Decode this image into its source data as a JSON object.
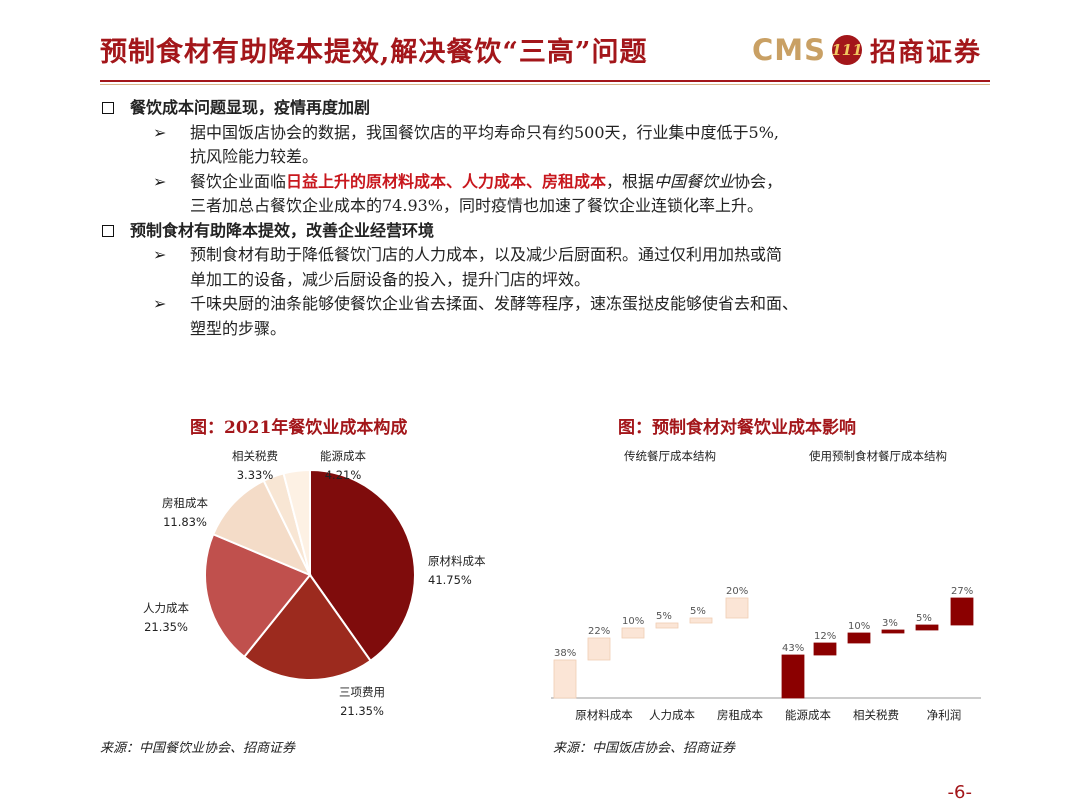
{
  "header": {
    "title": "预制食材有助降本提效,解决餐饮“三高”问题",
    "logo_text": "CMS",
    "logo_badge": "111",
    "logo_cn": "招商证券"
  },
  "sections": [
    {
      "heading": "餐饮成本问题显现，疫情再度加剧",
      "bullets": [
        {
          "line1": "据中国饭店协会的数据，我国餐饮店的平均寿命只有约500天，行业集中度低于5%,",
          "line2": "抗风险能力较差。"
        },
        {
          "p1": "餐饮企业面临",
          "red": "日益上升的原材料成本、人力成本、房租成本",
          "p2": "，根据",
          "italic": "中国餐饮业",
          "p3": "协会，",
          "line2": "三者加总占餐饮企业成本的74.93%，同时疫情也加速了餐饮企业连锁化率上升。"
        }
      ]
    },
    {
      "heading": "预制食材有助降本提效，改善企业经营环境",
      "bullets": [
        {
          "line1": "预制食材有助于降低餐饮门店的人力成本，以及减少后厨面积。通过仅利用加热或简",
          "line2": "单加工的设备，减少后厨设备的投入，提升门店的坪效。"
        },
        {
          "line1": "千味央厨的油条能够使餐饮企业省去揉面、发酵等程序，速冻蛋挞皮能够使省去和面、",
          "line2": "塑型的步骤。"
        }
      ]
    }
  ],
  "pie_caption": "图：2021年餐饮业成本构成",
  "pie_source": "来源：中国餐饮业协会、招商证券",
  "waterfall_caption": "图：预制食材对餐饮业成本影响",
  "waterfall_source": "来源：中国饭店协会、招商证券",
  "page_number": "-6-",
  "chart_data": [
    {
      "type": "pie",
      "title": "图：2021年餐饮业成本构成",
      "slices": [
        {
          "label": "原材料成本",
          "value": 41.75,
          "text": "41.75%",
          "color": "#7f0c0c"
        },
        {
          "label": "三项费用",
          "value": 21.35,
          "text": "21.35%",
          "color": "#9c2a1e"
        },
        {
          "label": "人力成本",
          "value": 21.35,
          "text": "21.35%",
          "color": "#c0504d"
        },
        {
          "label": "房租成本",
          "value": 11.83,
          "text": "11.83%",
          "color": "#f4dcc8"
        },
        {
          "label": "相关税费",
          "value": 3.33,
          "text": "3.33%",
          "color": "#f8e6d4"
        },
        {
          "label": "能源成本",
          "value": 4.21,
          "text": "4.21%",
          "color": "#fdf1e4"
        }
      ]
    },
    {
      "type": "bar",
      "subtype": "waterfall",
      "title": "图：预制食材对餐饮业成本影响",
      "categories": [
        "原材料成本",
        "人力成本",
        "房租成本",
        "能源成本",
        "相关税费",
        "净利润"
      ],
      "series": [
        {
          "name": "传统餐厅成本结构",
          "values": [
            38,
            22,
            10,
            5,
            5,
            20
          ],
          "color": "#fbe5d6"
        },
        {
          "name": "使用预制食材餐厅成本结构",
          "values": [
            43,
            12,
            10,
            3,
            5,
            27
          ],
          "color": "#8b0000"
        }
      ]
    }
  ]
}
